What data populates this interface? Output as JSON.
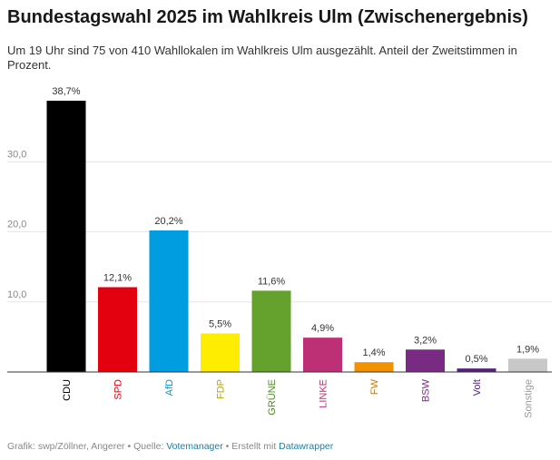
{
  "header": {
    "title": "Bundestagswahl 2025 im Wahlkreis Ulm (Zwischenergebnis)",
    "subtitle": "Um 19 Uhr sind 75 von 410 Wahllokalen im Wahlkreis Ulm ausgezählt. Anteil der Zweitstimmen in Prozent."
  },
  "chart_data": {
    "type": "bar",
    "title": "Bundestagswahl 2025 im Wahlkreis Ulm (Zwischenergebnis)",
    "ylim": [
      0,
      40
    ],
    "y_ticks": [
      {
        "value": 10,
        "label": "10,0"
      },
      {
        "value": 20,
        "label": "20,0"
      },
      {
        "value": 30,
        "label": "30,0"
      }
    ],
    "grid": true,
    "categories": [
      "CDU",
      "SPD",
      "AfD",
      "FDP",
      "GRÜNE",
      "LINKE",
      "FW",
      "BSW",
      "Volt",
      "Sonstige"
    ],
    "values": [
      38.7,
      12.1,
      20.2,
      5.5,
      11.6,
      4.9,
      1.4,
      3.2,
      0.5,
      1.9
    ],
    "value_labels": [
      "38,7%",
      "12,1%",
      "20,2%",
      "5,5%",
      "11,6%",
      "4,9%",
      "1,4%",
      "3,2%",
      "0,5%",
      "1,9%"
    ],
    "colors": [
      "#000000",
      "#e3000f",
      "#009ee0",
      "#ffed00",
      "#64a12d",
      "#be3075",
      "#f29200",
      "#792a83",
      "#502379",
      "#c8c8c8"
    ],
    "label_colors": [
      "#000000",
      "#e3000f",
      "#009ee0",
      "#b3a600",
      "#4f8a23",
      "#be3075",
      "#d07a00",
      "#792a83",
      "#502379",
      "#999999"
    ]
  },
  "footer": {
    "prefix": "Grafik: swp/Zöllner, Angerer • Quelle: ",
    "source_link": "Votemanager",
    "middle": " • Erstellt mit ",
    "tool_link": "Datawrapper"
  }
}
